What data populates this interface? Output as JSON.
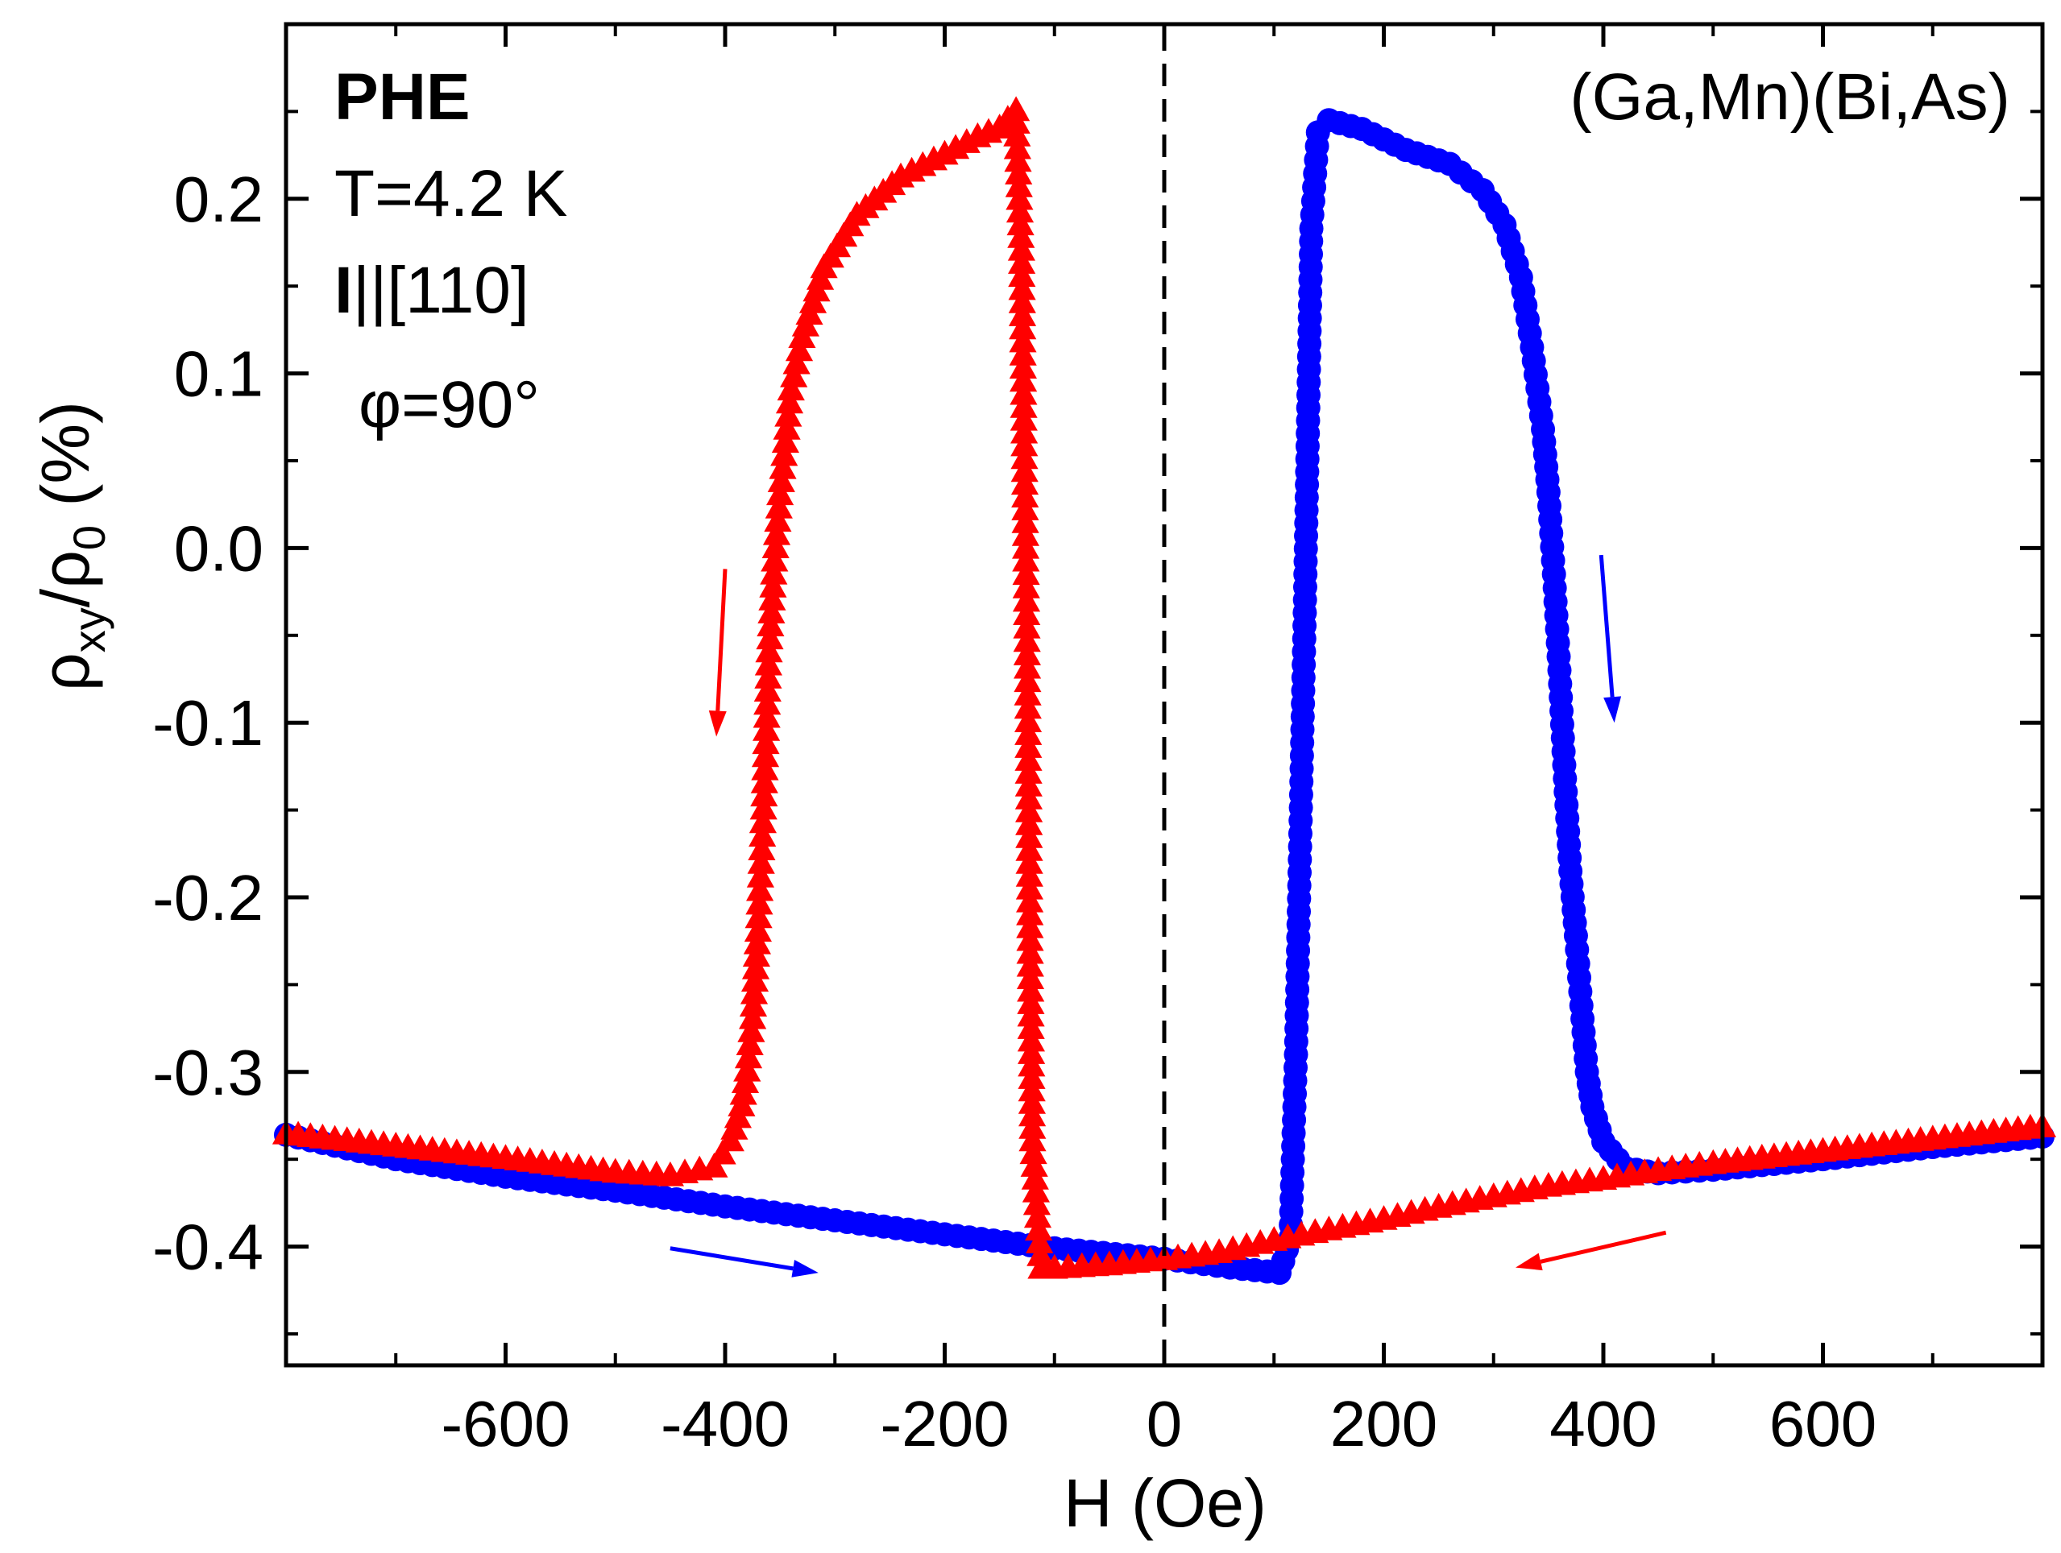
{
  "chart_data": {
    "type": "scatter",
    "xlabel": "H (Oe)",
    "ylabel_main": "ρ",
    "ylabel_sub1": "xy",
    "ylabel_slash": "/ρ",
    "ylabel_sub2": "0",
    "ylabel_unit": " (%)",
    "xlim": [
      -800,
      800
    ],
    "ylim": [
      -0.468,
      0.3
    ],
    "x_ticks": [
      -600,
      -400,
      -200,
      0,
      200,
      400,
      600
    ],
    "x_tick_labels": [
      "-600",
      "-400",
      "-200",
      "0",
      "200",
      "400",
      "600"
    ],
    "y_ticks": [
      0.2,
      0.1,
      0.0,
      -0.1,
      -0.2,
      -0.3,
      -0.4
    ],
    "y_tick_labels": [
      "0.2",
      "0.1",
      "0.0",
      "-0.1",
      "-0.2",
      "-0.3",
      "-0.4"
    ],
    "annotations": {
      "phe": "PHE",
      "temp": "T=4.2 K",
      "current_bold": "I",
      "current_rest": "||[110]",
      "phi": "φ=90°",
      "sample": "(Ga,Mn)(Bi,As)"
    },
    "vline_x": 0,
    "colors": {
      "red": "#ff0000",
      "blue": "#0000ff"
    },
    "series": [
      {
        "color": "red",
        "marker": "triangle",
        "points": [
          [
            800,
            -0.332
          ],
          [
            700,
            -0.339
          ],
          [
            600,
            -0.346
          ],
          [
            500,
            -0.353
          ],
          [
            450,
            -0.357
          ],
          [
            400,
            -0.362
          ],
          [
            350,
            -0.366
          ],
          [
            300,
            -0.372
          ],
          [
            250,
            -0.378
          ],
          [
            200,
            -0.385
          ],
          [
            150,
            -0.391
          ],
          [
            100,
            -0.397
          ],
          [
            50,
            -0.404
          ],
          [
            0,
            -0.408
          ],
          [
            -50,
            -0.411
          ],
          [
            -100,
            -0.413
          ],
          [
            -112,
            -0.413
          ],
          [
            -120,
            -0.34
          ],
          [
            -122,
            -0.24
          ],
          [
            -124,
            -0.1
          ],
          [
            -126,
            -0.008
          ],
          [
            -128,
            0.08
          ],
          [
            -130,
            0.17
          ],
          [
            -135,
            0.25
          ],
          [
            -150,
            0.24
          ],
          [
            -170,
            0.235
          ],
          [
            -200,
            0.225
          ],
          [
            -240,
            0.212
          ],
          [
            -280,
            0.19
          ],
          [
            -310,
            0.16
          ],
          [
            -330,
            0.12
          ],
          [
            -340,
            0.09
          ],
          [
            -345,
            0.06
          ],
          [
            -350,
            0.03
          ],
          [
            -355,
            -0.008
          ],
          [
            -360,
            -0.06
          ],
          [
            -365,
            -0.15
          ],
          [
            -370,
            -0.22
          ],
          [
            -375,
            -0.27
          ],
          [
            -380,
            -0.3
          ],
          [
            -385,
            -0.32
          ],
          [
            -395,
            -0.34
          ],
          [
            -410,
            -0.355
          ],
          [
            -450,
            -0.36
          ],
          [
            -500,
            -0.358
          ],
          [
            -600,
            -0.35
          ],
          [
            -700,
            -0.343
          ],
          [
            -800,
            -0.336
          ]
        ]
      },
      {
        "color": "blue",
        "marker": "circle",
        "points": [
          [
            -800,
            -0.336
          ],
          [
            -700,
            -0.35
          ],
          [
            -600,
            -0.36
          ],
          [
            -500,
            -0.368
          ],
          [
            -400,
            -0.377
          ],
          [
            -300,
            -0.385
          ],
          [
            -200,
            -0.393
          ],
          [
            -100,
            -0.401
          ],
          [
            0,
            -0.407
          ],
          [
            60,
            -0.412
          ],
          [
            105,
            -0.415
          ],
          [
            115,
            -0.395
          ],
          [
            120,
            -0.29
          ],
          [
            128,
            -0.037
          ],
          [
            134,
            0.183
          ],
          [
            140,
            0.238
          ],
          [
            150,
            0.245
          ],
          [
            180,
            0.24
          ],
          [
            220,
            0.228
          ],
          [
            260,
            0.22
          ],
          [
            290,
            0.205
          ],
          [
            310,
            0.185
          ],
          [
            325,
            0.155
          ],
          [
            335,
            0.115
          ],
          [
            345,
            0.068
          ],
          [
            350,
            0.032
          ],
          [
            355,
            -0.015
          ],
          [
            360,
            -0.07
          ],
          [
            365,
            -0.132
          ],
          [
            370,
            -0.185
          ],
          [
            375,
            -0.222
          ],
          [
            380,
            -0.262
          ],
          [
            385,
            -0.3
          ],
          [
            390,
            -0.32
          ],
          [
            400,
            -0.34
          ],
          [
            420,
            -0.355
          ],
          [
            450,
            -0.358
          ],
          [
            500,
            -0.356
          ],
          [
            600,
            -0.35
          ],
          [
            700,
            -0.343
          ],
          [
            800,
            -0.337
          ]
        ]
      }
    ],
    "arrows": [
      {
        "color": "red",
        "from": [
          -400,
          -0.012
        ],
        "to": [
          -408,
          -0.108
        ]
      },
      {
        "color": "blue",
        "from": [
          398,
          -0.004
        ],
        "to": [
          410,
          -0.1
        ]
      },
      {
        "color": "blue",
        "from": [
          -450,
          -0.401
        ],
        "to": [
          -315,
          -0.415
        ]
      },
      {
        "color": "red",
        "from": [
          457,
          -0.392
        ],
        "to": [
          320,
          -0.412
        ]
      }
    ]
  }
}
